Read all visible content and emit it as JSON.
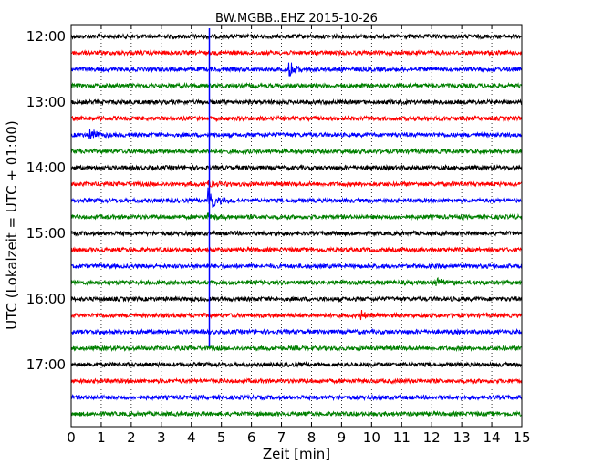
{
  "chart_data": {
    "type": "line",
    "title": "BW.MGBB..EHZ 2015-10-26",
    "xlabel": "Zeit  [min]",
    "ylabel": "UTC (Lokalzeit = UTC + 01:00)",
    "xlim": [
      0,
      15
    ],
    "x_ticks": [
      "0",
      "1",
      "2",
      "3",
      "4",
      "5",
      "6",
      "7",
      "8",
      "9",
      "10",
      "11",
      "12",
      "13",
      "14",
      "15"
    ],
    "y_ticks": [
      "12:00",
      "13:00",
      "14:00",
      "15:00",
      "16:00",
      "17:00"
    ],
    "grid": "vertical-dotted",
    "trace_colors": [
      "#000000",
      "#ff0000",
      "#0000ff",
      "#008000"
    ],
    "traces_start": "12:00",
    "trace_interval_min": 15,
    "trace_count": 24,
    "events": [
      {
        "trace": 2,
        "x": 7.3,
        "amplitude": 0.55
      },
      {
        "trace": 6,
        "x": 0.65,
        "amplitude": 0.55
      },
      {
        "trace": 9,
        "x": 4.6,
        "amplitude": 0.35
      },
      {
        "trace": 10,
        "x": 4.6,
        "amplitude": 1.0
      },
      {
        "trace": 11,
        "x": 4.6,
        "amplitude": 0.3
      },
      {
        "trace": 15,
        "x": 12.2,
        "amplitude": 0.35
      },
      {
        "trace": 17,
        "x": 9.7,
        "amplitude": 0.3
      }
    ],
    "spike_line": {
      "x": 4.6,
      "from_trace": -0.5,
      "to_trace": 18.9,
      "color": "#0000ff"
    }
  }
}
